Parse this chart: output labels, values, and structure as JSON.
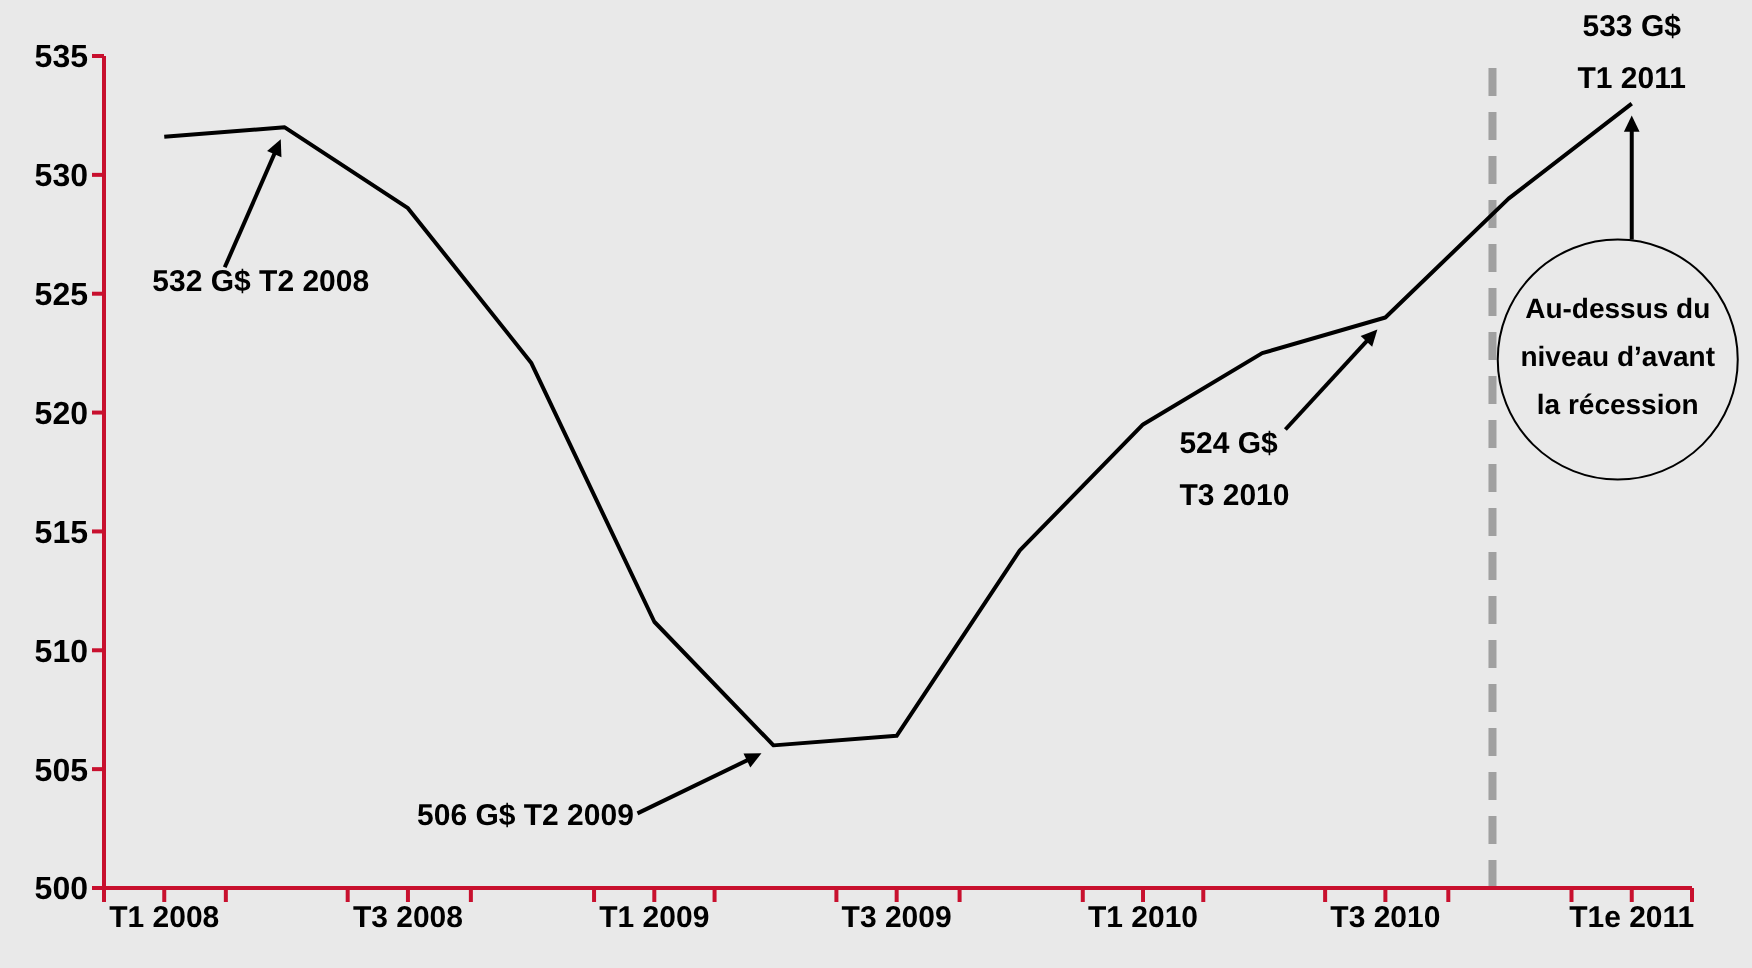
{
  "chart_data": {
    "type": "line",
    "x": [
      "2008-02-15",
      "2008-05-15",
      "2008-08-15",
      "2008-11-15",
      "2009-02-15",
      "2009-05-15",
      "2009-08-15",
      "2009-11-15",
      "2010-02-15",
      "2010-05-15",
      "2010-08-15",
      "2010-11-15",
      "2011-02-15"
    ],
    "values": [
      531.6,
      532,
      528.6,
      522.1,
      511.2,
      506,
      506.4,
      514.2,
      519.5,
      522.5,
      524,
      529,
      533
    ],
    "color": "#000000",
    "xlim": [
      "2008-01-01",
      "2011-04-01"
    ],
    "xticks": [
      {
        "value": "2008-01-01",
        "label": null
      },
      {
        "value": "2008-02-15",
        "label": "T1 2008"
      },
      {
        "value": "2008-04-01",
        "label": null
      },
      {
        "value": "2008-07-01",
        "label": null
      },
      {
        "value": "2008-08-15",
        "label": "T3 2008"
      },
      {
        "value": "2008-10-01",
        "label": null
      },
      {
        "value": "2009-01-01",
        "label": null
      },
      {
        "value": "2009-02-15",
        "label": "T1 2009"
      },
      {
        "value": "2009-04-01",
        "label": null
      },
      {
        "value": "2009-07-01",
        "label": null
      },
      {
        "value": "2009-08-15",
        "label": "T3 2009"
      },
      {
        "value": "2009-10-01",
        "label": null
      },
      {
        "value": "2010-01-01",
        "label": null
      },
      {
        "value": "2010-02-15",
        "label": "T1 2010"
      },
      {
        "value": "2010-04-01",
        "label": null
      },
      {
        "value": "2010-07-01",
        "label": null
      },
      {
        "value": "2010-08-15",
        "label": "T3 2010"
      },
      {
        "value": "2010-10-01",
        "label": null
      },
      {
        "value": "2011-01-01",
        "label": null
      },
      {
        "value": "2011-02-15",
        "label": "T1e 2011"
      },
      {
        "value": "2011-04-01",
        "label": null
      }
    ],
    "ylim": [
      500,
      535
    ],
    "yticks": [
      500,
      505,
      510,
      515,
      520,
      525,
      530,
      535
    ],
    "ref_lines": [
      {
        "axis": "x",
        "value": "2010-11-03",
        "color": "#a0a0a0",
        "line_style": "dashed"
      }
    ],
    "annotations": [
      "532 G$ T2 2008",
      "506 G$ T2 2009",
      "524 G$\nT3 2010",
      {
        "text": "533 G$\nT1 2011",
        "x": "2011-02-15",
        "y": 533
      },
      "Au-dessus du\nniveau d’avant\nla récession"
    ]
  }
}
